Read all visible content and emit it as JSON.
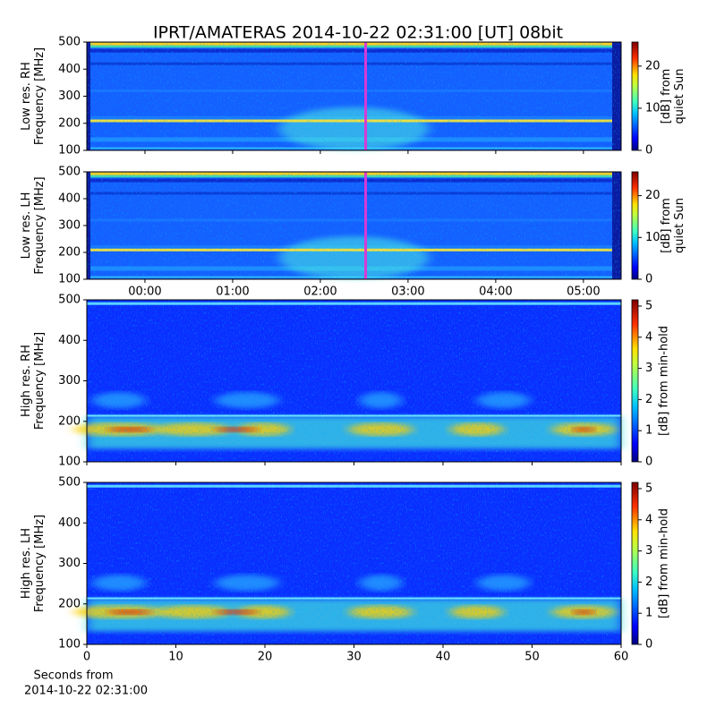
{
  "figure": {
    "title": "IPRT/AMATERAS 2014-10-22 02:31:00 [UT]   08bit",
    "xlabel": [
      "Seconds from",
      "2014-10-22 02:31:00"
    ]
  },
  "chart_data": [
    {
      "type": "heatmap",
      "style": "low",
      "ylabel": [
        "Low res. RH",
        "Frequency [MHz]"
      ],
      "ylim": [
        100,
        500
      ],
      "yticks": [
        100,
        200,
        300,
        400,
        500
      ],
      "xlim": [
        -0.663,
        5.43
      ],
      "xticks": [
        0,
        1,
        2,
        3,
        4,
        5
      ],
      "show_xtick_labels": false,
      "cursor": 2.5167,
      "cursor_color": "#d63ad6",
      "colorbar": {
        "label": [
          "[dB] from",
          "quiet Sun"
        ],
        "lim": [
          0,
          25.7
        ],
        "ticks": [
          0,
          10,
          20
        ]
      }
    },
    {
      "type": "heatmap",
      "style": "low",
      "ylabel": [
        "Low res. LH",
        "Frequency [MHz]"
      ],
      "ylim": [
        100,
        500
      ],
      "yticks": [
        100,
        200,
        300,
        400,
        500
      ],
      "xlim": [
        -0.663,
        5.43
      ],
      "xticks": [
        {
          "value": 0,
          "label": "00:00"
        },
        {
          "value": 1,
          "label": "01:00"
        },
        {
          "value": 2,
          "label": "02:00"
        },
        {
          "value": 3,
          "label": "03:00"
        },
        {
          "value": 4,
          "label": "04:00"
        },
        {
          "value": 5,
          "label": "05:00"
        }
      ],
      "show_xtick_labels": true,
      "cursor": 2.5167,
      "cursor_color": "#d63ad6",
      "colorbar": {
        "label": [
          "[dB] from",
          "quiet Sun"
        ],
        "lim": [
          0,
          25.7
        ],
        "ticks": [
          0,
          10,
          20
        ]
      }
    },
    {
      "type": "heatmap",
      "style": "high",
      "ylabel": [
        "High res. RH",
        "Frequency [MHz]"
      ],
      "ylim": [
        100,
        500
      ],
      "yticks": [
        100,
        200,
        300,
        400,
        500
      ],
      "xlim": [
        0,
        60
      ],
      "xticks": [
        0,
        10,
        20,
        30,
        40,
        50,
        60
      ],
      "show_xtick_labels": false,
      "colorbar": {
        "label": [
          "[dB] from min-hold"
        ],
        "lim": [
          0,
          5.2
        ],
        "ticks": [
          0,
          1,
          2,
          3,
          4,
          5
        ]
      }
    },
    {
      "type": "heatmap",
      "style": "high",
      "ylabel": [
        "High res. LH",
        "Frequency [MHz]"
      ],
      "ylim": [
        100,
        500
      ],
      "yticks": [
        100,
        200,
        300,
        400,
        500
      ],
      "xlim": [
        0,
        60
      ],
      "xticks": [
        0,
        10,
        20,
        30,
        40,
        50,
        60
      ],
      "show_xtick_labels": true,
      "colorbar": {
        "label": [
          "[dB] from min-hold"
        ],
        "lim": [
          0,
          5.2
        ],
        "ticks": [
          0,
          1,
          2,
          3,
          4,
          5
        ]
      }
    }
  ]
}
